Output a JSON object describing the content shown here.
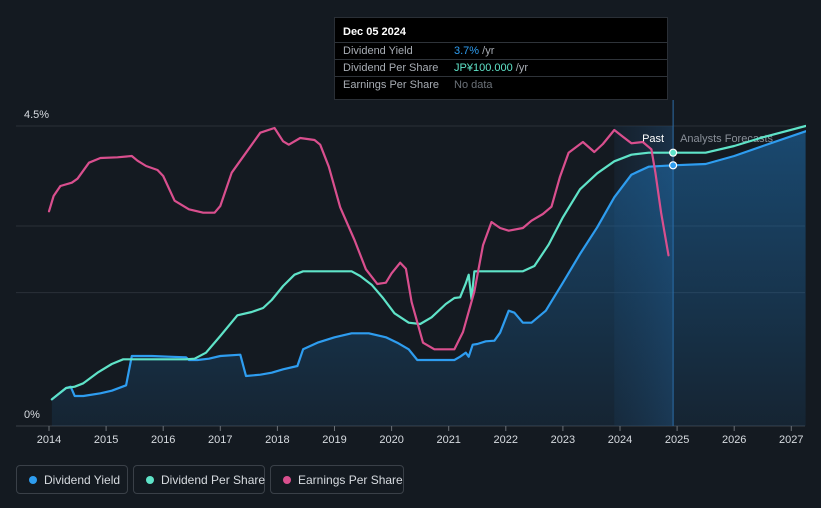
{
  "tooltip": {
    "date": "Dec 05 2024",
    "rows": [
      {
        "label": "Dividend Yield",
        "value": "3.7%",
        "unit": " /yr"
      },
      {
        "label": "Dividend Per Share",
        "value": "JP¥100.000",
        "unit": " /yr"
      },
      {
        "label": "Earnings Per Share",
        "value": "No data",
        "unit": ""
      }
    ]
  },
  "legend": [
    {
      "label": "Dividend Yield",
      "color": "#2e9df0"
    },
    {
      "label": "Dividend Per Share",
      "color": "#5fe3c8"
    },
    {
      "label": "Earnings Per Share",
      "color": "#d94f8e"
    }
  ],
  "chart_data": {
    "type": "line",
    "title": "",
    "xlabel": "",
    "ylabel": "",
    "xlim": [
      2013.95,
      2027.25
    ],
    "ylim": [
      0,
      4.5
    ],
    "y_tick_labels": [
      "4.5%",
      "0%"
    ],
    "x_ticks": [
      2014,
      2015,
      2016,
      2017,
      2018,
      2019,
      2020,
      2021,
      2022,
      2023,
      2024,
      2025,
      2026,
      2027
    ],
    "past_label": "Past",
    "forecast_label": "Analysts Forecasts",
    "past_shade_from": 2023.9,
    "forecast_start": 2024.93,
    "grid": true,
    "series": [
      {
        "name": "Dividend Yield",
        "color": "#2e9df0",
        "area": true,
        "points": [
          [
            2014.05,
            0.4
          ],
          [
            2014.3,
            0.57
          ],
          [
            2014.38,
            0.59
          ],
          [
            2014.45,
            0.45
          ],
          [
            2014.6,
            0.45
          ],
          [
            2014.9,
            0.49
          ],
          [
            2015.1,
            0.53
          ],
          [
            2015.35,
            0.61
          ],
          [
            2015.45,
            1.05
          ],
          [
            2015.8,
            1.05
          ],
          [
            2016.1,
            1.04
          ],
          [
            2016.4,
            1.03
          ],
          [
            2016.45,
            0.99
          ],
          [
            2016.6,
            0.99
          ],
          [
            2016.8,
            1.01
          ],
          [
            2017.0,
            1.05
          ],
          [
            2017.35,
            1.07
          ],
          [
            2017.45,
            0.75
          ],
          [
            2017.7,
            0.77
          ],
          [
            2017.9,
            0.8
          ],
          [
            2018.1,
            0.85
          ],
          [
            2018.35,
            0.9
          ],
          [
            2018.45,
            1.15
          ],
          [
            2018.7,
            1.25
          ],
          [
            2019.0,
            1.33
          ],
          [
            2019.3,
            1.39
          ],
          [
            2019.6,
            1.39
          ],
          [
            2019.9,
            1.33
          ],
          [
            2020.1,
            1.25
          ],
          [
            2020.3,
            1.15
          ],
          [
            2020.45,
            0.99
          ],
          [
            2020.7,
            0.99
          ],
          [
            2021.1,
            0.99
          ],
          [
            2021.2,
            1.04
          ],
          [
            2021.3,
            1.1
          ],
          [
            2021.35,
            1.04
          ],
          [
            2021.42,
            1.22
          ],
          [
            2021.5,
            1.23
          ],
          [
            2021.65,
            1.27
          ],
          [
            2021.8,
            1.28
          ],
          [
            2021.9,
            1.4
          ],
          [
            2022.05,
            1.73
          ],
          [
            2022.15,
            1.7
          ],
          [
            2022.3,
            1.55
          ],
          [
            2022.45,
            1.55
          ],
          [
            2022.7,
            1.73
          ],
          [
            2023.0,
            2.15
          ],
          [
            2023.3,
            2.58
          ],
          [
            2023.6,
            2.98
          ],
          [
            2023.9,
            3.43
          ],
          [
            2024.2,
            3.77
          ],
          [
            2024.5,
            3.89
          ],
          [
            2024.93,
            3.91
          ],
          [
            2025.5,
            3.93
          ],
          [
            2026.0,
            4.05
          ],
          [
            2026.5,
            4.2
          ],
          [
            2027.25,
            4.42
          ]
        ]
      },
      {
        "name": "Dividend Per Share",
        "color": "#5fe3c8",
        "area": false,
        "points": [
          [
            2014.05,
            0.4
          ],
          [
            2014.3,
            0.57
          ],
          [
            2014.45,
            0.59
          ],
          [
            2014.6,
            0.64
          ],
          [
            2014.85,
            0.8
          ],
          [
            2015.1,
            0.93
          ],
          [
            2015.3,
            1.0
          ],
          [
            2016.4,
            1.0
          ],
          [
            2016.55,
            1.01
          ],
          [
            2016.75,
            1.1
          ],
          [
            2017.0,
            1.35
          ],
          [
            2017.3,
            1.66
          ],
          [
            2017.55,
            1.71
          ],
          [
            2017.75,
            1.77
          ],
          [
            2017.9,
            1.89
          ],
          [
            2018.1,
            2.1
          ],
          [
            2018.3,
            2.27
          ],
          [
            2018.45,
            2.32
          ],
          [
            2019.3,
            2.32
          ],
          [
            2019.45,
            2.25
          ],
          [
            2019.65,
            2.12
          ],
          [
            2019.85,
            1.92
          ],
          [
            2020.05,
            1.69
          ],
          [
            2020.3,
            1.55
          ],
          [
            2020.5,
            1.53
          ],
          [
            2020.7,
            1.63
          ],
          [
            2020.95,
            1.83
          ],
          [
            2021.1,
            1.92
          ],
          [
            2021.2,
            1.93
          ],
          [
            2021.3,
            2.14
          ],
          [
            2021.35,
            2.27
          ],
          [
            2021.4,
            1.9
          ],
          [
            2021.45,
            2.32
          ],
          [
            2022.3,
            2.32
          ],
          [
            2022.5,
            2.4
          ],
          [
            2022.75,
            2.72
          ],
          [
            2023.0,
            3.13
          ],
          [
            2023.3,
            3.55
          ],
          [
            2023.6,
            3.79
          ],
          [
            2023.9,
            3.97
          ],
          [
            2024.2,
            4.07
          ],
          [
            2024.5,
            4.1
          ],
          [
            2024.93,
            4.1
          ],
          [
            2025.5,
            4.1
          ],
          [
            2026.0,
            4.2
          ],
          [
            2026.5,
            4.33
          ],
          [
            2027.25,
            4.5
          ]
        ]
      },
      {
        "name": "Earnings Per Share",
        "color": "#d94f8e",
        "area": false,
        "points": [
          [
            2014.0,
            3.22
          ],
          [
            2014.08,
            3.45
          ],
          [
            2014.2,
            3.6
          ],
          [
            2014.4,
            3.65
          ],
          [
            2014.5,
            3.71
          ],
          [
            2014.7,
            3.95
          ],
          [
            2014.9,
            4.02
          ],
          [
            2015.2,
            4.03
          ],
          [
            2015.45,
            4.05
          ],
          [
            2015.55,
            3.98
          ],
          [
            2015.7,
            3.9
          ],
          [
            2015.9,
            3.84
          ],
          [
            2016.0,
            3.75
          ],
          [
            2016.2,
            3.38
          ],
          [
            2016.45,
            3.25
          ],
          [
            2016.7,
            3.2
          ],
          [
            2016.9,
            3.2
          ],
          [
            2017.0,
            3.3
          ],
          [
            2017.2,
            3.8
          ],
          [
            2017.45,
            4.1
          ],
          [
            2017.7,
            4.4
          ],
          [
            2017.95,
            4.47
          ],
          [
            2018.1,
            4.27
          ],
          [
            2018.2,
            4.22
          ],
          [
            2018.4,
            4.32
          ],
          [
            2018.65,
            4.29
          ],
          [
            2018.75,
            4.22
          ],
          [
            2018.9,
            3.89
          ],
          [
            2019.1,
            3.28
          ],
          [
            2019.35,
            2.79
          ],
          [
            2019.55,
            2.35
          ],
          [
            2019.75,
            2.13
          ],
          [
            2019.9,
            2.15
          ],
          [
            2020.0,
            2.29
          ],
          [
            2020.15,
            2.45
          ],
          [
            2020.25,
            2.36
          ],
          [
            2020.35,
            1.86
          ],
          [
            2020.55,
            1.25
          ],
          [
            2020.75,
            1.15
          ],
          [
            2021.1,
            1.15
          ],
          [
            2021.25,
            1.41
          ],
          [
            2021.45,
            2.02
          ],
          [
            2021.6,
            2.71
          ],
          [
            2021.75,
            3.06
          ],
          [
            2021.9,
            2.97
          ],
          [
            2022.05,
            2.93
          ],
          [
            2022.3,
            2.97
          ],
          [
            2022.45,
            3.08
          ],
          [
            2022.65,
            3.18
          ],
          [
            2022.8,
            3.29
          ],
          [
            2022.95,
            3.74
          ],
          [
            2023.1,
            4.1
          ],
          [
            2023.35,
            4.26
          ],
          [
            2023.55,
            4.11
          ],
          [
            2023.7,
            4.23
          ],
          [
            2023.9,
            4.44
          ],
          [
            2024.05,
            4.34
          ],
          [
            2024.2,
            4.24
          ],
          [
            2024.4,
            4.26
          ],
          [
            2024.55,
            4.15
          ],
          [
            2024.62,
            3.8
          ],
          [
            2024.72,
            3.2
          ],
          [
            2024.85,
            2.56
          ]
        ]
      }
    ]
  }
}
